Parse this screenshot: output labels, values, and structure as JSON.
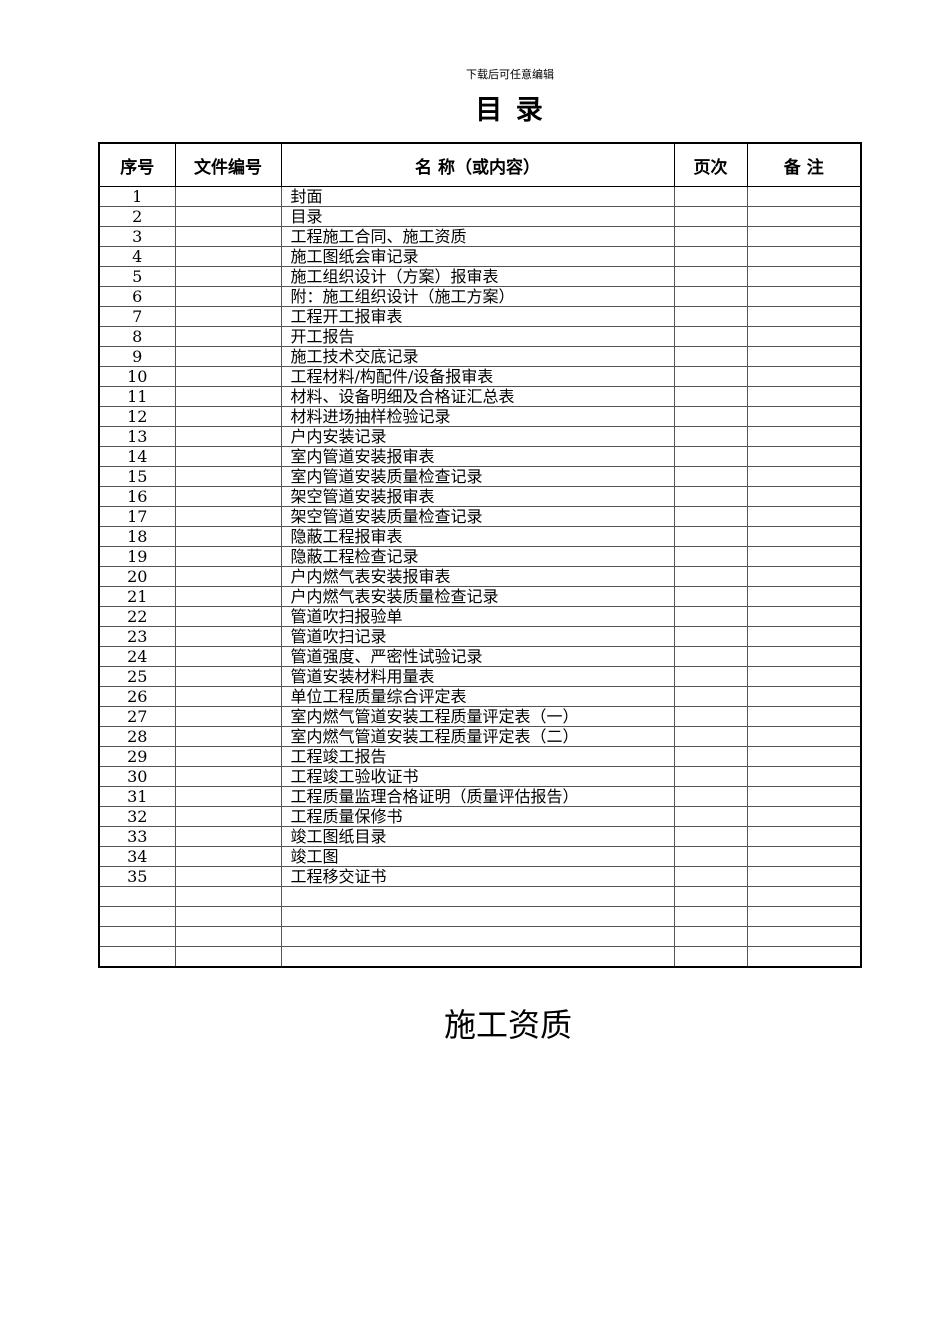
{
  "header_note": "下载后可任意编辑",
  "title": "目 录",
  "table": {
    "columns": [
      "序号",
      "文件编号",
      "名 称（或内容）",
      "页次",
      "备 注"
    ],
    "rows": [
      {
        "no": "1",
        "name": "封面"
      },
      {
        "no": "2",
        "name": "目录"
      },
      {
        "no": "3",
        "name": "工程施工合同、施工资质"
      },
      {
        "no": "4",
        "name": "施工图纸会审记录"
      },
      {
        "no": "5",
        "name": "施工组织设计（方案）报审表"
      },
      {
        "no": "6",
        "name": "附：施工组织设计（施工方案）"
      },
      {
        "no": "7",
        "name": "工程开工报审表"
      },
      {
        "no": "8",
        "name": "开工报告"
      },
      {
        "no": "9",
        "name": "施工技术交底记录"
      },
      {
        "no": "10",
        "name": "工程材料/构配件/设备报审表"
      },
      {
        "no": "11",
        "name": "材料、设备明细及合格证汇总表"
      },
      {
        "no": "12",
        "name": "材料进场抽样检验记录"
      },
      {
        "no": "13",
        "name": "户内安装记录"
      },
      {
        "no": "14",
        "name": "室内管道安装报审表"
      },
      {
        "no": "15",
        "name": "室内管道安装质量检查记录"
      },
      {
        "no": "16",
        "name": "架空管道安装报审表"
      },
      {
        "no": "17",
        "name": "架空管道安装质量检查记录"
      },
      {
        "no": "18",
        "name": "隐蔽工程报审表"
      },
      {
        "no": "19",
        "name": "隐蔽工程检查记录"
      },
      {
        "no": "20",
        "name": "户内燃气表安装报审表"
      },
      {
        "no": "21",
        "name": "户内燃气表安装质量检查记录"
      },
      {
        "no": "22",
        "name": "管道吹扫报验单"
      },
      {
        "no": "23",
        "name": "管道吹扫记录"
      },
      {
        "no": "24",
        "name": "管道强度、严密性试验记录"
      },
      {
        "no": "25",
        "name": "管道安装材料用量表"
      },
      {
        "no": "26",
        "name": "单位工程质量综合评定表"
      },
      {
        "no": "27",
        "name": "室内燃气管道安装工程质量评定表（一）"
      },
      {
        "no": "28",
        "name": "室内燃气管道安装工程质量评定表（二）"
      },
      {
        "no": "29",
        "name": "工程竣工报告"
      },
      {
        "no": "30",
        "name": "工程竣工验收证书"
      },
      {
        "no": "31",
        "name": "工程质量监理合格证明（质量评估报告）"
      },
      {
        "no": "32",
        "name": "工程质量保修书"
      },
      {
        "no": "33",
        "name": "竣工图纸目录"
      },
      {
        "no": "34",
        "name": "竣工图"
      },
      {
        "no": "35",
        "name": "工程移交证书"
      },
      {
        "no": "",
        "name": ""
      },
      {
        "no": "",
        "name": ""
      },
      {
        "no": "",
        "name": ""
      },
      {
        "no": "",
        "name": ""
      }
    ]
  },
  "section_title": "施工资质"
}
